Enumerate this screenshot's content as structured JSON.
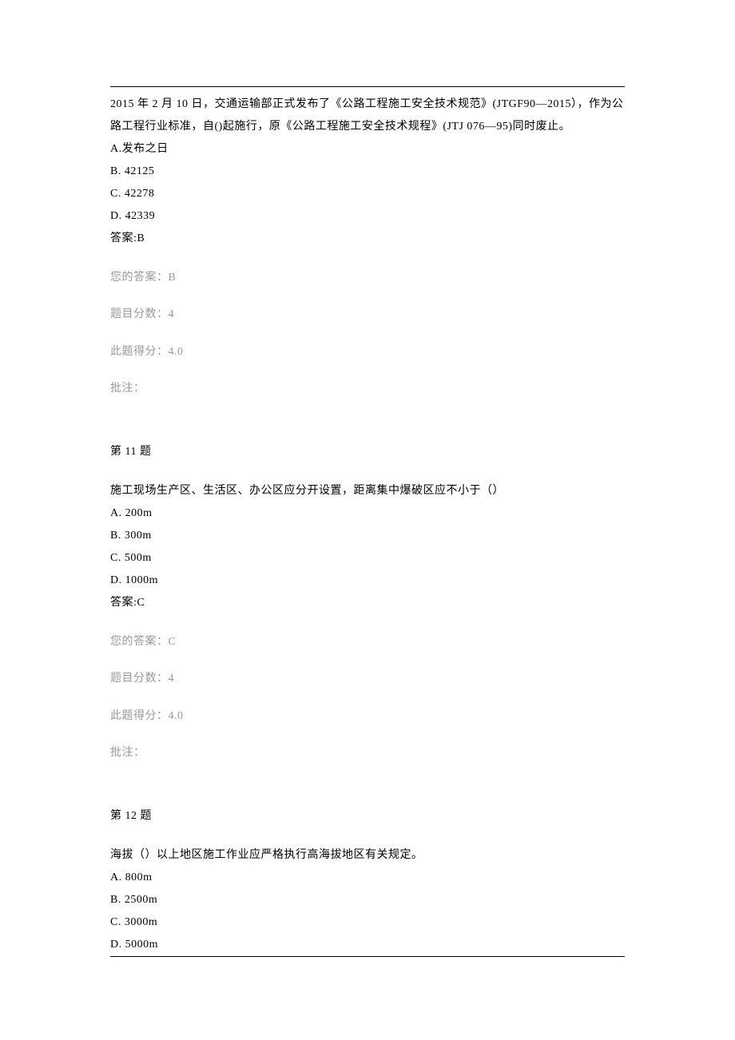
{
  "colors": {
    "text_primary": "#000000",
    "text_muted": "#999999",
    "background": "#ffffff",
    "border": "#000000"
  },
  "typography": {
    "font_family": "SimSun",
    "body_fontsize": 14,
    "line_height_main": 2.0,
    "line_height_meta": 1.6
  },
  "q10": {
    "question_text": "2015 年 2 月 10 日，交通运输部正式发布了《公路工程施工安全技术规范》(JTGF90—2015），作为公路工程行业标准，自()起施行，原《公路工程施工安全技术规程》(JTJ 076—95)同时废止。",
    "options": {
      "A": "A.发布之日",
      "B": "B. 42125",
      "C": "C. 42278",
      "D": "D. 42339"
    },
    "answer_label": "答案:B",
    "your_answer_label": "您的答案：B",
    "score_label": "题目分数：4",
    "obtained_label": "此题得分：4.0",
    "note_label": "批注："
  },
  "q11": {
    "header": "第 11 题",
    "question_text": "施工现场生产区、生活区、办公区应分开设置，距离集中爆破区应不小于（）",
    "options": {
      "A": "A. 200m",
      "B": "B. 300m",
      "C": "C. 500m",
      "D": "D. 1000m"
    },
    "answer_label": "答案:C",
    "your_answer_label": "您的答案：C",
    "score_label": "题目分数：4",
    "obtained_label": "此题得分：4.0",
    "note_label": "批注："
  },
  "q12": {
    "header": "第 12 题",
    "question_text": "海拔（）以上地区施工作业应严格执行高海拔地区有关规定。",
    "options": {
      "A": "A. 800m",
      "B": "B. 2500m",
      "C": "C. 3000m",
      "D": "D. 5000m"
    }
  }
}
